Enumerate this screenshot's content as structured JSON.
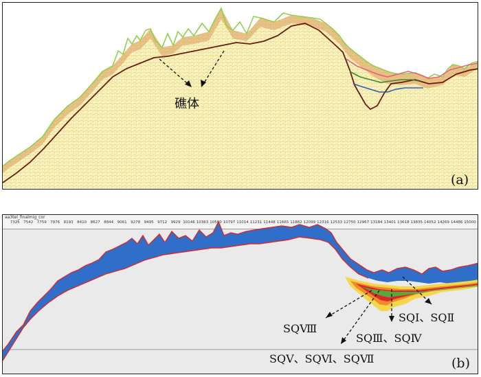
{
  "panel_a": {
    "reef_label": "礁体",
    "panel_label": "(a)"
  },
  "panel_b": {
    "ruler_title": "aa3tel_finalmig_cor",
    "ruler_ticks": [
      "7325",
      "7542",
      "7759",
      "7976",
      "8193",
      "8410",
      "8627",
      "8844",
      "9061",
      "9278",
      "9495",
      "9712",
      "9929",
      "10146",
      "10363",
      "10580",
      "10797",
      "11014",
      "11231",
      "11448",
      "11665",
      "11882",
      "12099",
      "12316",
      "12533",
      "12750",
      "12967",
      "13184",
      "13401",
      "13618",
      "13835",
      "14052",
      "14269",
      "14486",
      "15000"
    ],
    "labels": {
      "sq8": "SQⅧ",
      "sq12": "SQⅠ、SQⅡ",
      "sq34": "SQⅢ、SQⅣ",
      "sq567": "SQⅤ、SQⅥ、SQⅦ"
    },
    "panel_label": "(b)"
  },
  "colors": {
    "seismic_bg": "#fbf6c7",
    "green_horizon": "#8fd14a",
    "brown_horizon": "#6b1a10",
    "pink_horizon": "#e8607a",
    "blue_horizon": "#2a5db0",
    "blue_fill": "#2f6fc9",
    "red_outline": "#d8282c",
    "gray_bg": "#eaeaea"
  }
}
